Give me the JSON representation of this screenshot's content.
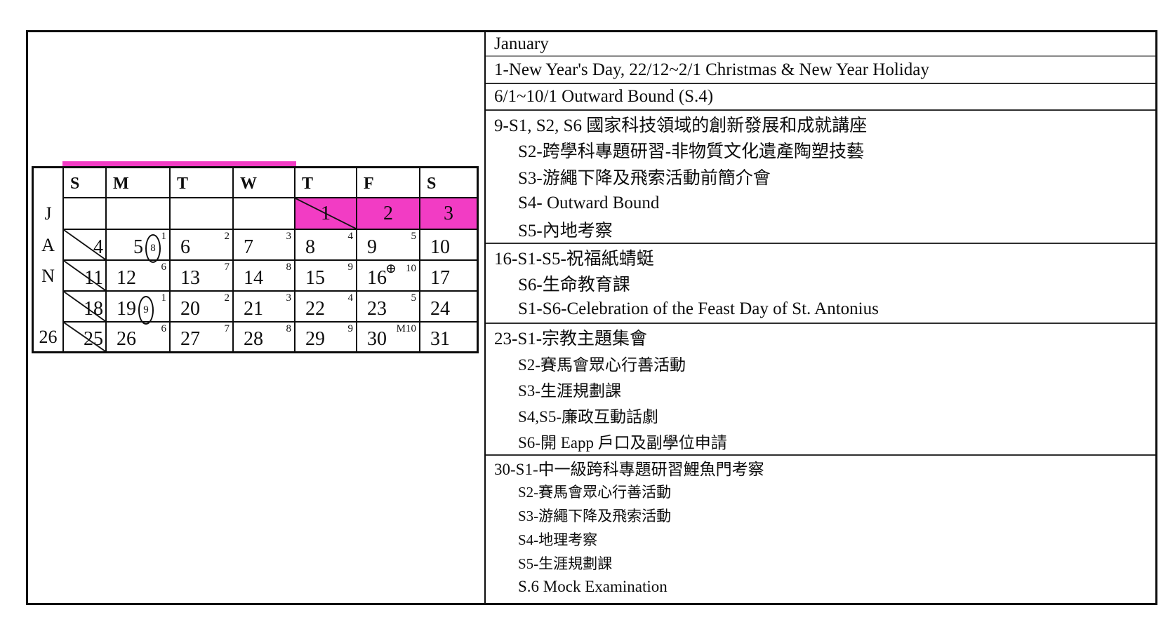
{
  "calendar": {
    "vertical_label": [
      "J",
      "A",
      "N"
    ],
    "week_number": "26",
    "day_headers": [
      "S",
      "M",
      "T",
      "W",
      "T",
      "F",
      "S"
    ],
    "highlight_color": "#f23cc4",
    "weeks": [
      {
        "cells": [
          {},
          {},
          {},
          {},
          {
            "date": "1",
            "pink": true,
            "diag": true
          },
          {
            "date": "2",
            "pink": true
          },
          {
            "date": "3",
            "pink": true
          }
        ]
      },
      {
        "cells": [
          {
            "date": "4",
            "sun": true,
            "diag": true
          },
          {
            "date": "5",
            "sup": "1",
            "oval": "8"
          },
          {
            "date": "6",
            "sup": "2"
          },
          {
            "date": "7",
            "sup": "3"
          },
          {
            "date": "8",
            "sup": "4"
          },
          {
            "date": "9",
            "sup": "5"
          },
          {
            "date": "10"
          }
        ]
      },
      {
        "cells": [
          {
            "date": "11",
            "sun": true,
            "diag": true
          },
          {
            "date": "12",
            "sup": "6"
          },
          {
            "date": "13",
            "sup": "7"
          },
          {
            "date": "14",
            "sup": "8"
          },
          {
            "date": "15",
            "sup": "9"
          },
          {
            "date": "16",
            "sup": "10",
            "oplus": true
          },
          {
            "date": "17"
          }
        ]
      },
      {
        "cells": [
          {
            "date": "18",
            "sun": true,
            "diag": true
          },
          {
            "date": "19",
            "sup": "1",
            "oval": "9"
          },
          {
            "date": "20",
            "sup": "2"
          },
          {
            "date": "21",
            "sup": "3"
          },
          {
            "date": "22",
            "sup": "4"
          },
          {
            "date": "23",
            "sup": "5"
          },
          {
            "date": "24"
          }
        ]
      },
      {
        "cells": [
          {
            "date": "25",
            "sun": true,
            "diag": true
          },
          {
            "date": "26",
            "sup": "6"
          },
          {
            "date": "27",
            "sup": "7"
          },
          {
            "date": "28",
            "sup": "8"
          },
          {
            "date": "29",
            "sup": "9"
          },
          {
            "date": "30",
            "sup": "M10"
          },
          {
            "date": "31"
          }
        ]
      }
    ]
  },
  "events": {
    "month_title": "January",
    "sections": [
      {
        "lines": [
          {
            "text": "1-New Year's Day, 22/12~2/1 Christmas & New Year Holiday",
            "level": 0
          }
        ]
      },
      {
        "lines": [
          {
            "text": "6/1~10/1 Outward Bound (S.4)",
            "level": 0
          }
        ]
      },
      {
        "lines": [
          {
            "text": "9-S1, S2, S6 國家科技領域的創新發展和成就講座",
            "level": 0
          },
          {
            "text": "S2-跨學科專題研習-非物質文化遺產陶塑技藝",
            "level": 1
          },
          {
            "text": "S3-游繩下降及飛索活動前簡介會",
            "level": 1
          },
          {
            "text": "S4- Outward Bound",
            "level": 1
          },
          {
            "text": "S5-內地考察",
            "level": 1
          }
        ]
      },
      {
        "lines": [
          {
            "text": "16-S1-S5-祝福紙蜻蜓",
            "level": 0
          },
          {
            "text": "S6-生命教育課",
            "level": 1
          },
          {
            "text": "S1-S6-Celebration of the Feast Day of St. Antonius",
            "level": 1
          }
        ]
      },
      {
        "lines": [
          {
            "text": "23-S1-宗教主題集會",
            "level": 0
          },
          {
            "text": "S2-賽馬會眾心行善活動",
            "level": 1,
            "size": "md"
          },
          {
            "text": "S3-生涯規劃課",
            "level": 1,
            "size": "md"
          },
          {
            "text": "S4,S5-廉政互動話劇",
            "level": 1,
            "size": "md"
          },
          {
            "text": "S6-開 Eapp 戶口及副學位申請",
            "level": 1,
            "size": "md"
          }
        ]
      },
      {
        "lines": [
          {
            "text": "30-S1-中一級跨科專題研習鯉魚門考察",
            "level": 0,
            "size": "md"
          },
          {
            "text": "S2-賽馬會眾心行善活動",
            "level": 1,
            "size": "sm"
          },
          {
            "text": "S3-游繩下降及飛索活動",
            "level": 1,
            "size": "sm"
          },
          {
            "text": "S4-地理考察",
            "level": 1,
            "size": "sm"
          },
          {
            "text": "S5-生涯規劃課",
            "level": 1,
            "size": "sm"
          },
          {
            "text": "S.6 Mock Examination",
            "level": 1,
            "size": "md"
          }
        ]
      }
    ]
  }
}
